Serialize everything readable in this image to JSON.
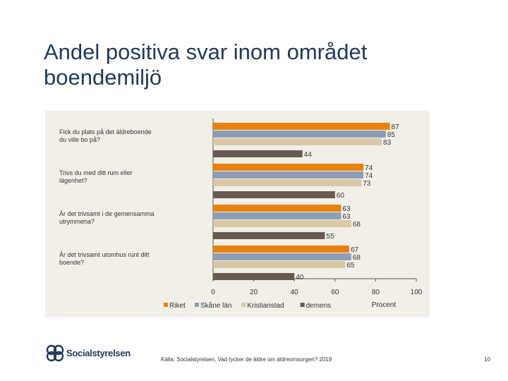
{
  "title": "Andel positiva svar inom området boendemiljö",
  "colors": {
    "series": [
      "#e8820c",
      "#8c9eb5",
      "#d8c8a5",
      "#665a50"
    ],
    "panel": "#f2efe8",
    "axis": "#555555"
  },
  "chart_data": {
    "type": "bar",
    "orientation": "horizontal",
    "categories": [
      "Fick du plats på det äldreboende du ville bo på?",
      "Trivs du med ditt rum eller lägenhet?",
      "Är det trivsamt i de gemensamma utrymmena?",
      "Är det trivsamt utomhus runt ditt boende?"
    ],
    "series": [
      {
        "name": "Riket",
        "values": [
          87,
          74,
          63,
          67
        ]
      },
      {
        "name": "Skåne län",
        "values": [
          85,
          74,
          63,
          68
        ]
      },
      {
        "name": "Kristianstad",
        "values": [
          83,
          73,
          68,
          65
        ]
      },
      {
        "name": "demens",
        "values": [
          44,
          60,
          55,
          40
        ]
      }
    ],
    "xlim": [
      0,
      100
    ],
    "xticks": [
      0,
      20,
      40,
      60,
      80,
      100
    ],
    "xlabel": "Procent",
    "legend_position": "bottom"
  },
  "footer": {
    "logo_text": "Socialstyrelsen",
    "source": "Källa: Socialstyrelsen, Vad tycker de äldre om äldreomsorgen? 2019",
    "page_number": "10"
  }
}
